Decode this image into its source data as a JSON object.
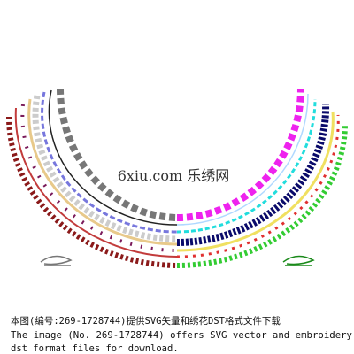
{
  "watermark": "6xiu.com 乐绣网",
  "caption": [
    "本图(编号:269-1728744)提供SVG矢量和绣花DST格式文件下载",
    "The image (No. 269-1728744) offers SVG vector and embroidery",
    "dst format files for download."
  ]
}
